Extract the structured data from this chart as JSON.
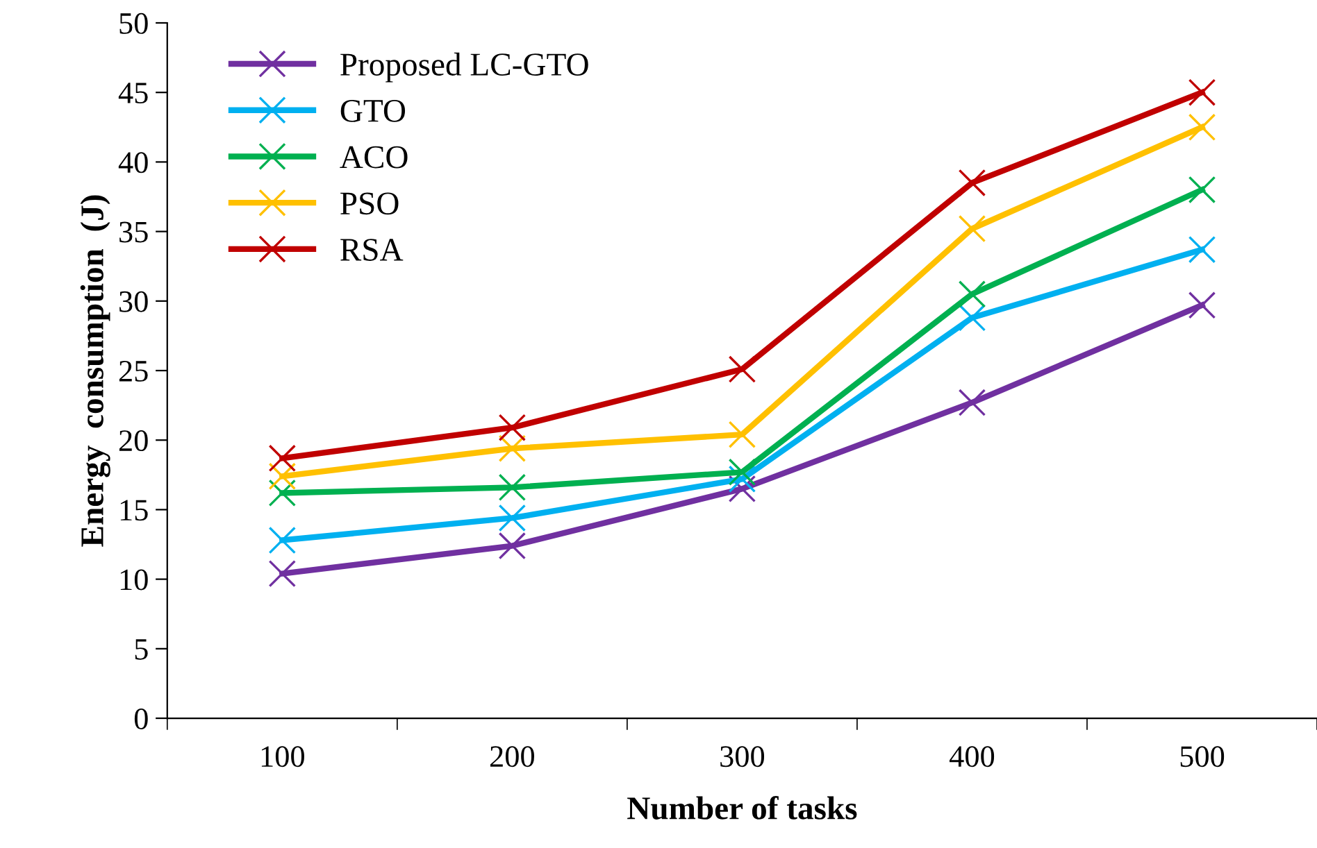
{
  "chart_data": {
    "type": "line",
    "xlabel": "Number of tasks",
    "ylabel": "Energy  consumption  (J)",
    "categories": [
      "100",
      "200",
      "300",
      "400",
      "500"
    ],
    "ylim": [
      0,
      50
    ],
    "yticks": [
      0,
      5,
      10,
      15,
      20,
      25,
      30,
      35,
      40,
      45,
      50
    ],
    "grid": false,
    "legend": "top left",
    "marker": "cross",
    "line_style": "solid",
    "series": [
      {
        "name": "Proposed LC-GTO",
        "color": "#7030a0",
        "values": [
          10.4,
          12.4,
          16.5,
          22.7,
          29.7
        ]
      },
      {
        "name": "GTO",
        "color": "#00b0f0",
        "values": [
          12.8,
          14.4,
          17.2,
          28.8,
          33.7
        ]
      },
      {
        "name": "ACO",
        "color": "#00b050",
        "values": [
          16.2,
          16.6,
          17.7,
          30.5,
          38.0
        ]
      },
      {
        "name": "PSO",
        "color": "#ffc000",
        "values": [
          17.4,
          19.4,
          20.4,
          35.2,
          42.5
        ]
      },
      {
        "name": "RSA",
        "color": "#c00000",
        "values": [
          18.7,
          20.9,
          25.1,
          38.5,
          45.0
        ]
      }
    ]
  }
}
